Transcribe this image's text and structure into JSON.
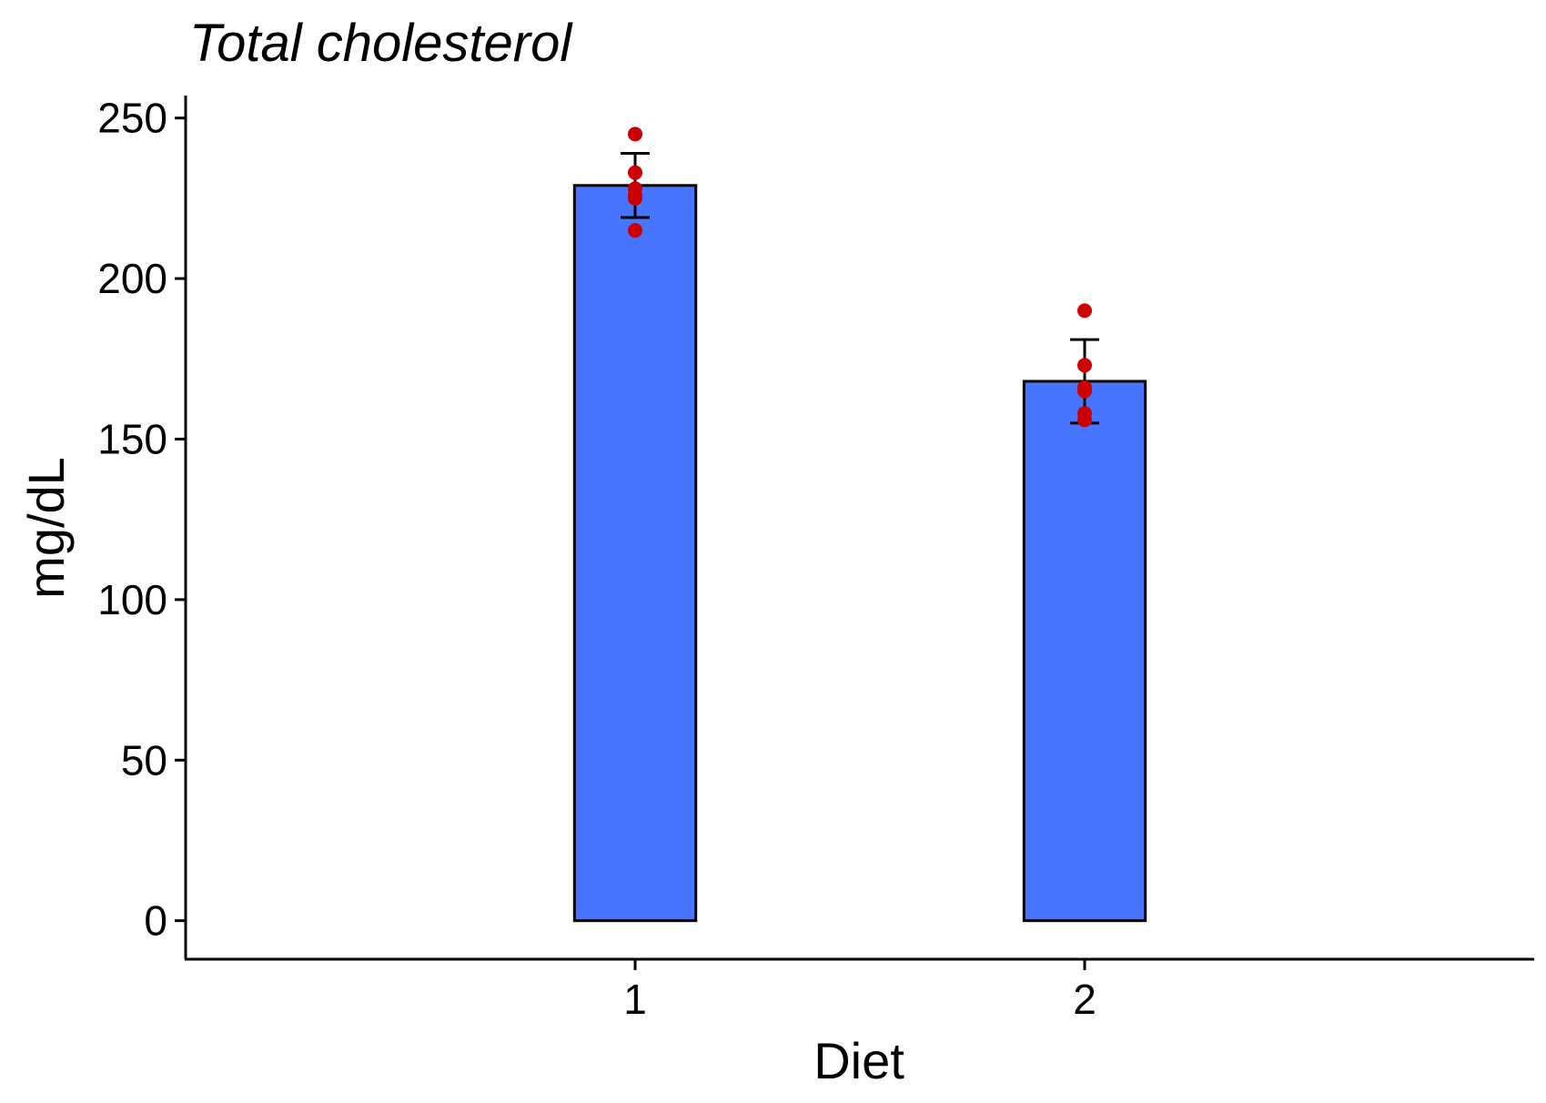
{
  "chart_data": {
    "type": "bar",
    "title": "Total cholesterol",
    "xlabel": "Diet",
    "ylabel": "mg/dL",
    "categories": [
      "1",
      "2"
    ],
    "values": [
      229,
      168
    ],
    "error_bars": [
      {
        "low": 219,
        "high": 239
      },
      {
        "low": 155,
        "high": 181
      }
    ],
    "points": [
      [
        245,
        233,
        228,
        226,
        225,
        215
      ],
      [
        190,
        173,
        166,
        165,
        158,
        156
      ]
    ],
    "yticks": [
      "0",
      "50",
      "100",
      "150",
      "200",
      "250"
    ],
    "ylim": [
      -12,
      257
    ],
    "grid": false,
    "legend": "none",
    "colors": {
      "bar_fill": "#4875ff",
      "point": "#cc0000",
      "line": "#000000"
    }
  }
}
